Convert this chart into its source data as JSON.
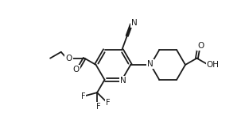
{
  "bg_color": "#ffffff",
  "line_color": "#1a1a1a",
  "line_width": 1.3,
  "font_size": 7.0,
  "figsize": [
    3.03,
    1.67
  ],
  "dpi": 100,
  "xlim": [
    0,
    10
  ],
  "ylim": [
    0,
    5.5
  ]
}
